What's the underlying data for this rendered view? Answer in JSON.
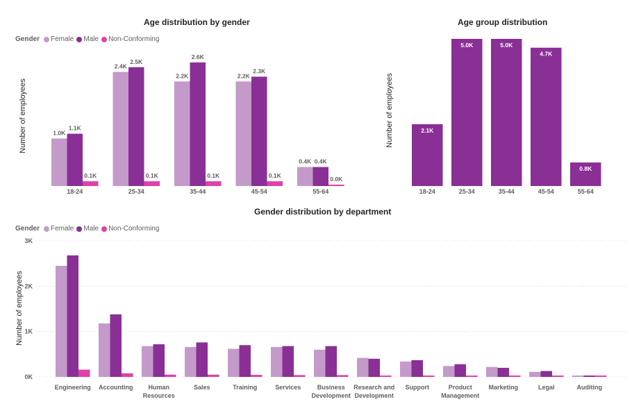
{
  "colors": {
    "female": "#c49aca",
    "male": "#8a2f96",
    "nonconforming": "#e040a8",
    "total": "#8a2f96",
    "grid": "#d0d0d0",
    "text": "#252423",
    "muted": "#605e5c"
  },
  "legend": {
    "title": "Gender",
    "items": [
      "Female",
      "Male",
      "Non-Conforming"
    ]
  },
  "chart_data": [
    {
      "type": "bar",
      "title": "Age distribution by gender",
      "xlabel": "",
      "ylabel": "Number of employees",
      "categories": [
        "18-24",
        "25-34",
        "35-44",
        "45-54",
        "55-64"
      ],
      "series": [
        {
          "name": "Female",
          "values": [
            1.0,
            2.4,
            2.2,
            2.2,
            0.4
          ],
          "labels": [
            "1.0K",
            "2.4K",
            "2.2K",
            "2.2K",
            "0.4K"
          ]
        },
        {
          "name": "Male",
          "values": [
            1.1,
            2.5,
            2.6,
            2.3,
            0.4
          ],
          "labels": [
            "1.1K",
            "2.5K",
            "2.6K",
            "2.3K",
            "0.4K"
          ]
        },
        {
          "name": "Non-Conforming",
          "values": [
            0.1,
            0.1,
            0.1,
            0.1,
            0.0
          ],
          "labels": [
            "0.1K",
            "0.1K",
            "0.1K",
            "0.1K",
            "0.0K"
          ]
        }
      ],
      "legend_position": "top-left",
      "grid": false
    },
    {
      "type": "bar",
      "title": "Age group distribution",
      "xlabel": "",
      "ylabel": "Number of employees",
      "categories": [
        "18-24",
        "25-34",
        "35-44",
        "45-54",
        "55-64"
      ],
      "values": [
        2.1,
        5.0,
        5.0,
        4.7,
        0.8
      ],
      "labels": [
        "2.1K",
        "5.0K",
        "5.0K",
        "4.7K",
        "0.8K"
      ],
      "grid": false
    },
    {
      "type": "bar",
      "title": "Gender distribution by department",
      "xlabel": "",
      "ylabel": "Number of employees",
      "ylim": [
        0,
        3000
      ],
      "yticks": [
        0,
        1000,
        2000,
        3000
      ],
      "ytick_labels": [
        "0K",
        "1K",
        "2K",
        "3K"
      ],
      "categories": [
        "Engineering",
        "Accounting",
        "Human Resources",
        "Sales",
        "Training",
        "Services",
        "Business Development",
        "Research and Development",
        "Support",
        "Product Management",
        "Marketing",
        "Legal",
        "Auditing"
      ],
      "series": [
        {
          "name": "Female",
          "values": [
            2450,
            1180,
            680,
            660,
            620,
            660,
            600,
            420,
            340,
            240,
            220,
            110,
            25
          ]
        },
        {
          "name": "Male",
          "values": [
            2680,
            1380,
            720,
            760,
            700,
            680,
            680,
            400,
            370,
            280,
            200,
            130,
            30
          ]
        },
        {
          "name": "Non-Conforming",
          "values": [
            160,
            80,
            50,
            50,
            45,
            40,
            40,
            30,
            30,
            20,
            20,
            15,
            5
          ]
        }
      ],
      "legend_position": "top-left",
      "grid": true
    }
  ]
}
